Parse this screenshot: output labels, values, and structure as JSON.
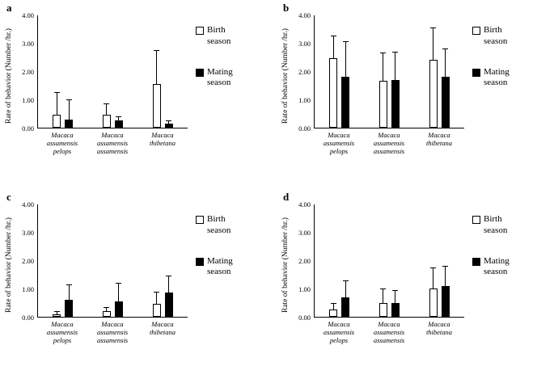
{
  "figure": {
    "background": "#ffffff",
    "text_color": "#000000",
    "colors": {
      "birth_fill": "#ffffff",
      "mating_fill": "#000000",
      "stroke": "#000000"
    },
    "legend_labels": [
      "Birth season",
      "Mating season"
    ]
  },
  "chart_data": [
    {
      "type": "bar",
      "panel": "a",
      "title": "",
      "ylabel": "Rate of behavior (Number /hr.)",
      "xlabel": "",
      "ylim": [
        0,
        4
      ],
      "yticks": [
        "4.00",
        "3.00",
        "2.00",
        "1.00",
        "0.00"
      ],
      "grid": false,
      "legend_position": "right",
      "categories": [
        "Macaca assamensis pelops",
        "Macaca assamensis assamensis",
        "Macaca thibetana"
      ],
      "series": [
        {
          "name": "Birth season",
          "values": [
            0.45,
            0.45,
            1.55
          ],
          "errors": [
            0.8,
            0.4,
            1.2
          ]
        },
        {
          "name": "Mating season",
          "values": [
            0.3,
            0.25,
            0.15
          ],
          "errors": [
            0.7,
            0.15,
            0.1
          ]
        }
      ]
    },
    {
      "type": "bar",
      "panel": "b",
      "title": "",
      "ylabel": "Rate of behavior (Number /hr.)",
      "xlabel": "",
      "ylim": [
        0,
        4
      ],
      "yticks": [
        "4.00",
        "3.00",
        "2.00",
        "1.00",
        "0.00"
      ],
      "grid": false,
      "legend_position": "right",
      "categories": [
        "Macaca assamensis pelops",
        "Macaca assamensis assamensis",
        "Macaca thibetana"
      ],
      "series": [
        {
          "name": "Birth season",
          "values": [
            2.45,
            1.65,
            2.4
          ],
          "errors": [
            0.8,
            1.0,
            1.15
          ]
        },
        {
          "name": "Mating season",
          "values": [
            1.8,
            1.7,
            1.8
          ],
          "errors": [
            1.25,
            1.0,
            1.0
          ]
        }
      ]
    },
    {
      "type": "bar",
      "panel": "c",
      "title": "",
      "ylabel": "Rate of behavior (Number /hr.)",
      "xlabel": "",
      "ylim": [
        0,
        4
      ],
      "yticks": [
        "4.00",
        "3.00",
        "2.00",
        "1.00",
        "0.00"
      ],
      "grid": false,
      "legend_position": "right",
      "categories": [
        "Macaca assamensis pelops",
        "Macaca assamensis assamensis",
        "Macaca thibetana"
      ],
      "series": [
        {
          "name": "Birth season",
          "values": [
            0.1,
            0.2,
            0.45
          ],
          "errors": [
            0.1,
            0.15,
            0.45
          ]
        },
        {
          "name": "Mating season",
          "values": [
            0.6,
            0.55,
            0.85
          ],
          "errors": [
            0.55,
            0.65,
            0.6
          ]
        }
      ]
    },
    {
      "type": "bar",
      "panel": "d",
      "title": "",
      "ylabel": "Rate of behavior (Number /hr.)",
      "xlabel": "",
      "ylim": [
        0,
        4
      ],
      "yticks": [
        "4.00",
        "3.00",
        "2.00",
        "1.00",
        "0.00"
      ],
      "grid": false,
      "legend_position": "right",
      "categories": [
        "Macaca assamensis pelops",
        "Macaca assamensis assamensis",
        "Macaca thibetana"
      ],
      "series": [
        {
          "name": "Birth season",
          "values": [
            0.25,
            0.5,
            1.0
          ],
          "errors": [
            0.25,
            0.5,
            0.75
          ]
        },
        {
          "name": "Mating season",
          "values": [
            0.7,
            0.5,
            1.1
          ],
          "errors": [
            0.6,
            0.45,
            0.7
          ]
        }
      ]
    }
  ]
}
